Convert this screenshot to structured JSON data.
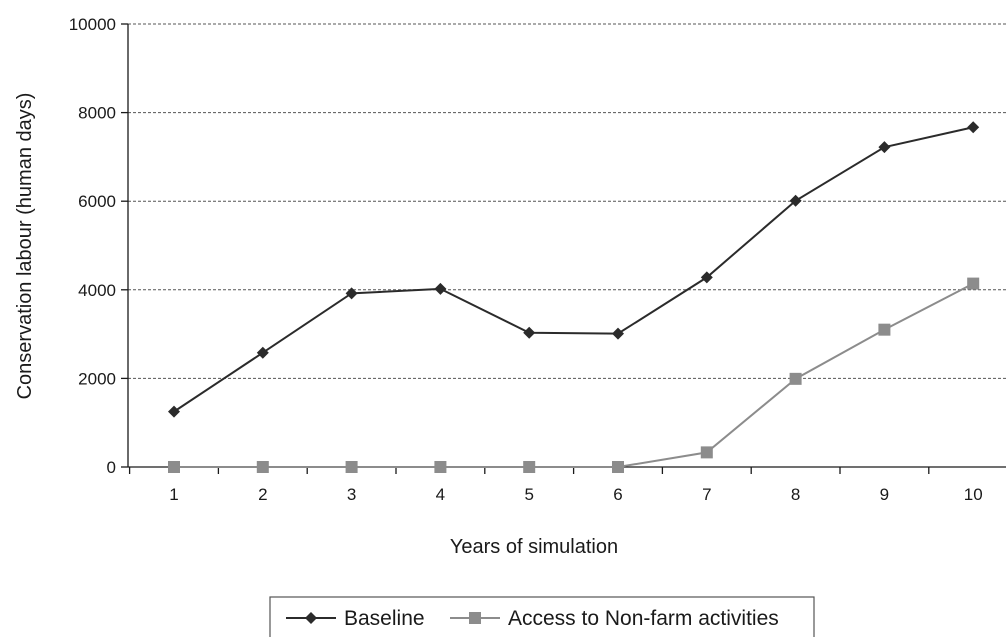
{
  "chart_data": {
    "type": "line",
    "x": [
      1,
      2,
      3,
      4,
      5,
      6,
      7,
      8,
      9,
      10
    ],
    "xlabel": "Years of simulation",
    "ylabel": "Conservation labour (human days)",
    "ylim": [
      0,
      10000
    ],
    "yticks": [
      0,
      2000,
      4000,
      6000,
      8000,
      10000
    ],
    "grid": "horizontal dashed",
    "legend_position": "bottom",
    "series": [
      {
        "name": "Baseline",
        "marker": "diamond",
        "color": "#2b2b2b",
        "values": [
          1250,
          2580,
          3920,
          4020,
          3030,
          3010,
          4280,
          6010,
          7220,
          7670
        ]
      },
      {
        "name": "Access to Non-farm activities",
        "marker": "square",
        "color": "#8c8c8c",
        "values": [
          0,
          0,
          0,
          0,
          0,
          0,
          330,
          1990,
          3100,
          4140
        ]
      }
    ]
  }
}
